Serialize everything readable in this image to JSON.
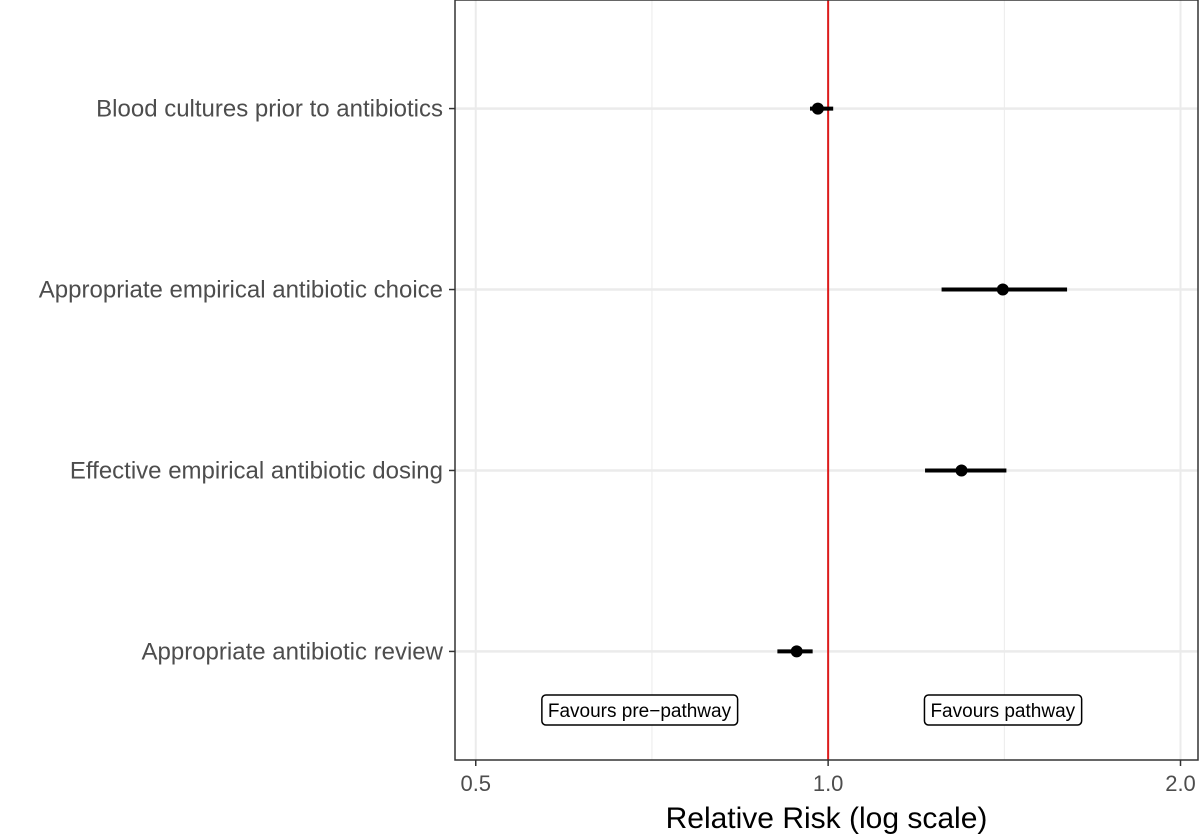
{
  "chart_data": {
    "type": "forest",
    "title": "",
    "xlabel": "Relative Risk (log scale)",
    "ylabel": "",
    "x_scale": "log",
    "xlim": [
      0.48,
      2.07
    ],
    "x_ticks": [
      0.5,
      1.0,
      2.0
    ],
    "x_tick_labels": [
      "0.5",
      "1.0",
      "2.0"
    ],
    "grid": true,
    "reference_line": {
      "x": 1.0,
      "color": "#dd1c1c"
    },
    "categories": [
      "Blood cultures prior to antibiotics",
      "Appropriate empirical antibiotic choice",
      "Effective empirical antibiotic dosing",
      "Appropriate antibiotic review"
    ],
    "series": [
      {
        "name": "Relative Risk",
        "estimates": [
          0.98,
          1.41,
          1.3,
          0.94
        ],
        "lower": [
          0.965,
          1.25,
          1.21,
          0.905
        ],
        "upper": [
          1.01,
          1.6,
          1.42,
          0.97
        ]
      }
    ],
    "annotations": [
      {
        "text": "Favours pre−pathway",
        "x": 0.69
      },
      {
        "text": "Favours pathway",
        "x": 1.41
      }
    ]
  }
}
